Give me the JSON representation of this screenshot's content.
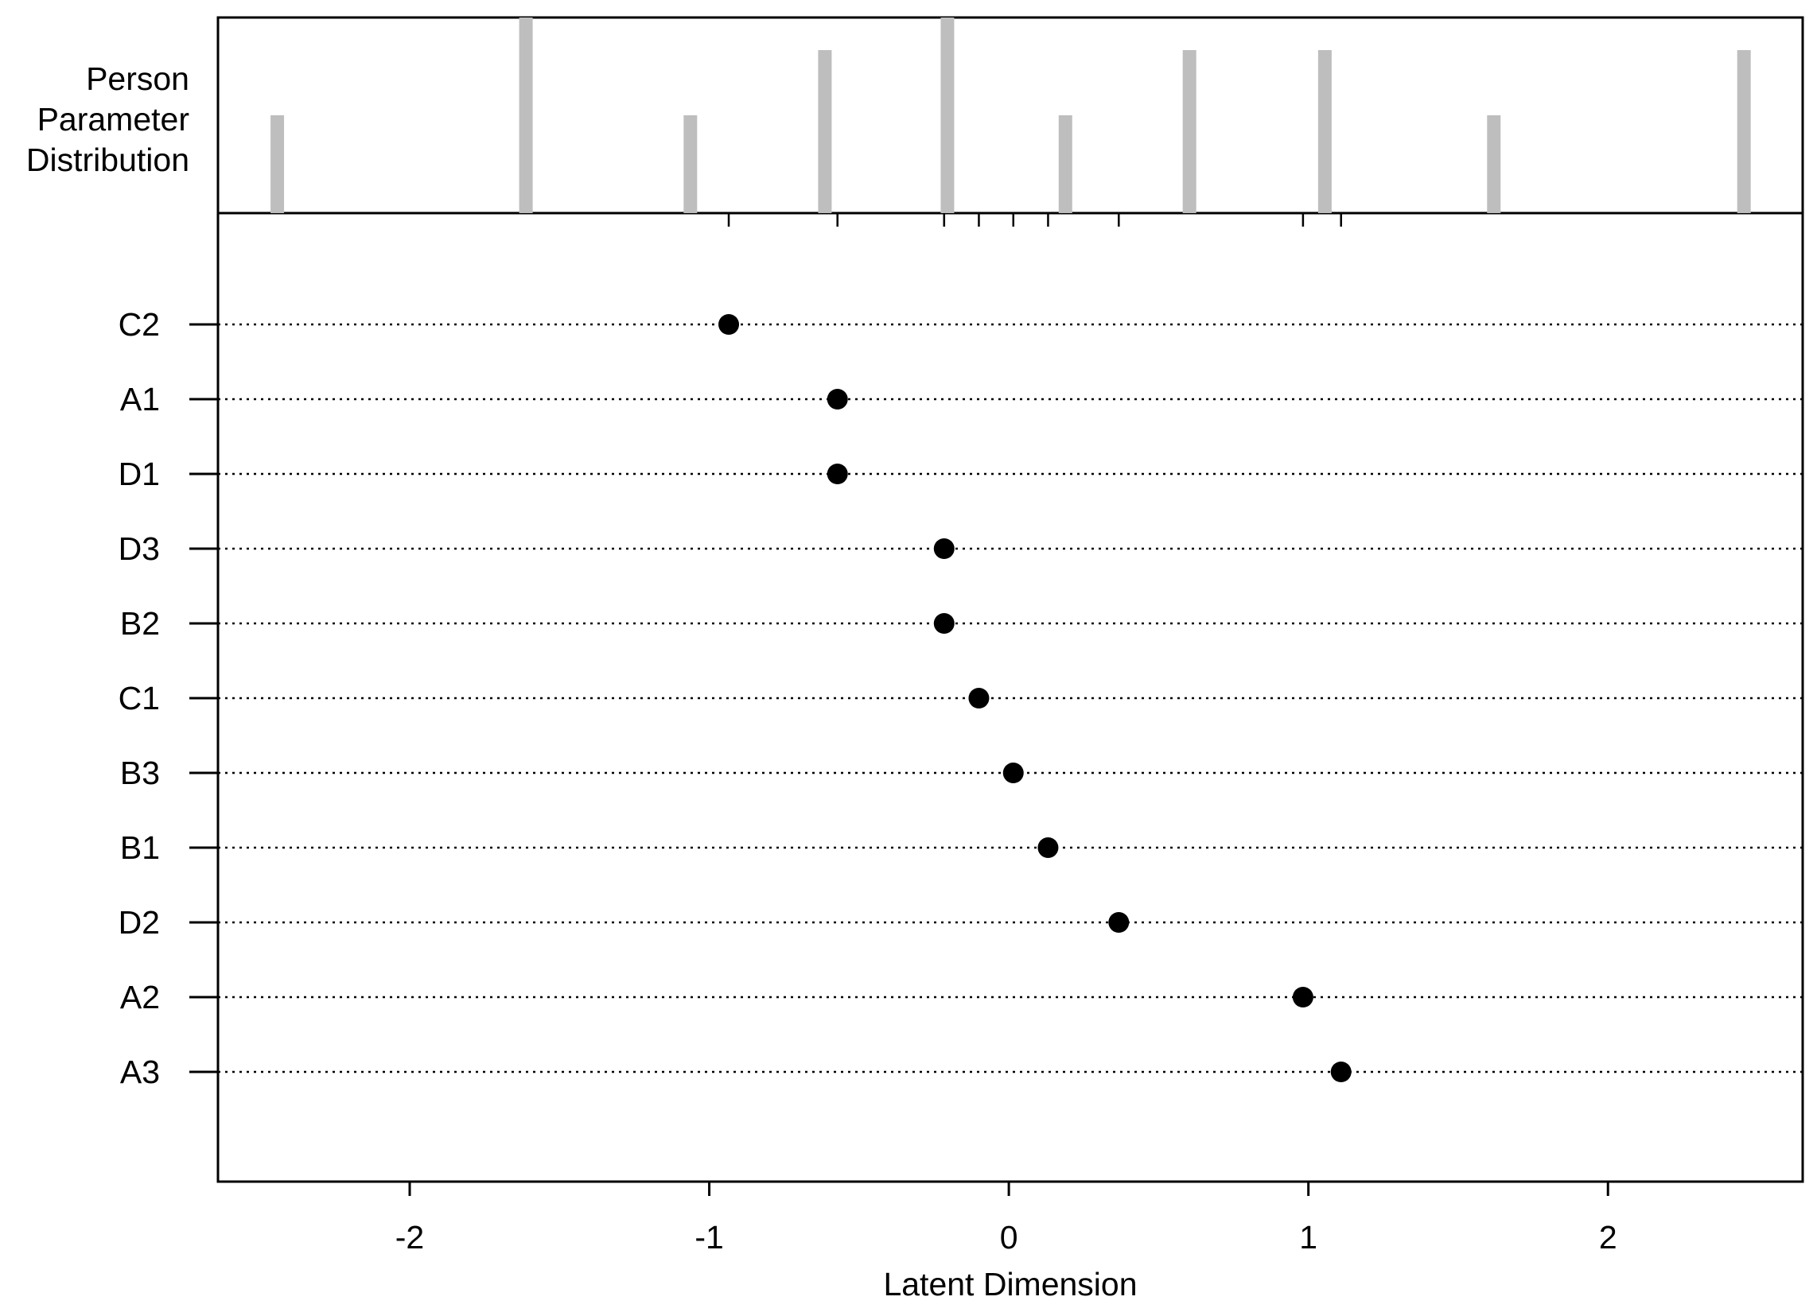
{
  "chart_data": {
    "type": "dotplot",
    "x_label": "Latent Dimension",
    "categories": [
      "C2",
      "A1",
      "D1",
      "D3",
      "B2",
      "C1",
      "B3",
      "B1",
      "D2",
      "A2",
      "A3"
    ],
    "values": [
      -0.935,
      -0.572,
      -0.572,
      -0.216,
      -0.216,
      -0.1,
      0.015,
      0.131,
      0.367,
      0.982,
      1.109
    ],
    "color": "#000000",
    "xlim": [
      -2.64,
      2.65
    ],
    "xticks": [
      -2,
      -1,
      0,
      1,
      2
    ],
    "person_distribution": {
      "label": "Person Parameter Distribution",
      "x": [
        -2.442,
        -1.612,
        -1.063,
        -0.614,
        -0.205,
        0.189,
        0.603,
        1.055,
        1.619,
        2.454
      ],
      "values": [
        3,
        6,
        3,
        5,
        6,
        3,
        5,
        5,
        3,
        5
      ],
      "ylim": [
        0,
        6
      ],
      "color": "#bebebe"
    }
  }
}
